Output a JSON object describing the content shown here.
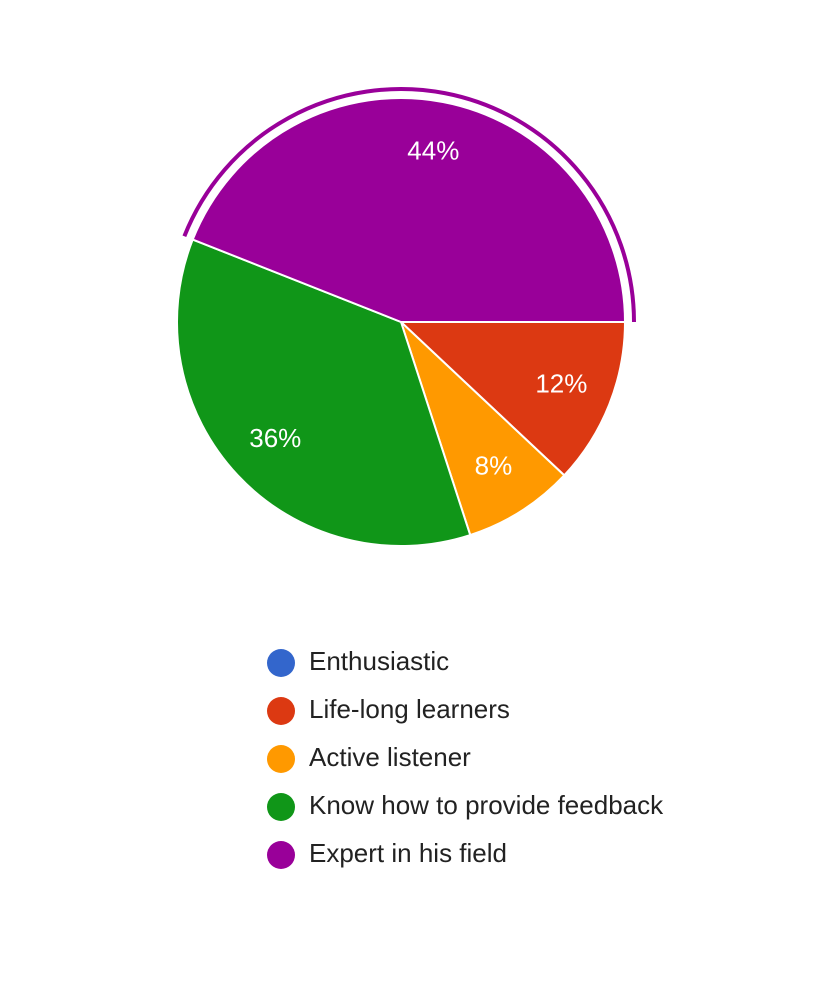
{
  "chart_data": {
    "type": "pie",
    "categories": [
      "Enthusiastic",
      "Life-long learners",
      "Active listener",
      "Know how to provide feedback",
      "Expert in his field"
    ],
    "values": [
      0,
      12,
      8,
      36,
      44
    ],
    "value_labels": [
      null,
      "12%",
      "8%",
      "36%",
      "44%"
    ],
    "colors": [
      "#3366cc",
      "#dc3912",
      "#ff9900",
      "#109618",
      "#990099"
    ],
    "highlighted": 4
  }
}
